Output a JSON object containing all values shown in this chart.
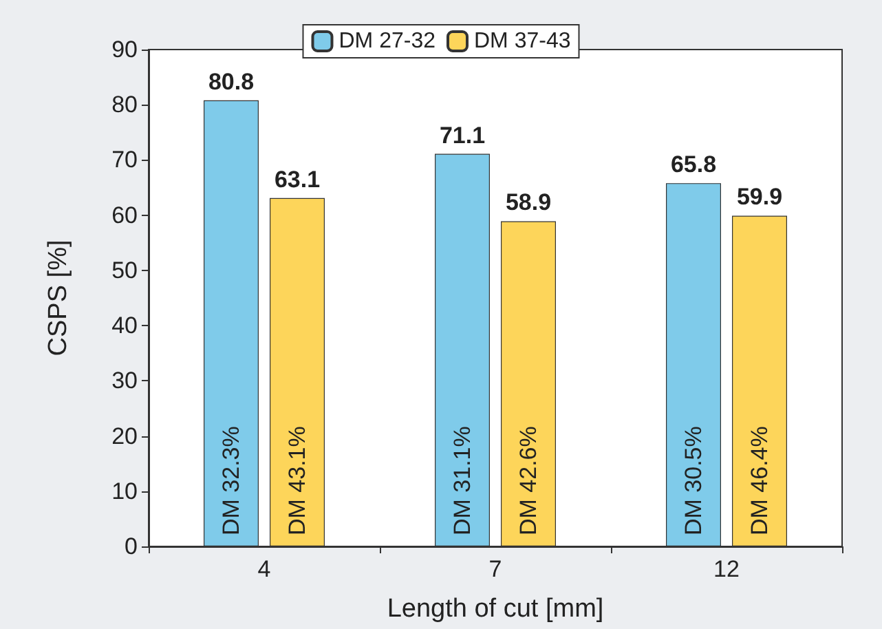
{
  "chart_data": {
    "type": "bar",
    "xlabel": "Length of cut [mm]",
    "ylabel": "CSPS [%]",
    "categories": [
      "4",
      "7",
      "12"
    ],
    "series": [
      {
        "name": "DM 27-32",
        "color": "#7fcbea",
        "values": [
          80.8,
          71.1,
          65.8
        ]
      },
      {
        "name": "DM 37-43",
        "color": "#fdd55a",
        "values": [
          63.1,
          58.9,
          59.9
        ]
      }
    ],
    "ylim": [
      0,
      90
    ],
    "yticks": [
      0,
      10,
      20,
      30,
      40,
      50,
      60,
      70,
      80,
      90
    ],
    "data_labels": true,
    "legend": "top",
    "grid": false,
    "annotations": [
      "DM 32.3%",
      "DM 43.1%",
      "DM 31.1%",
      "DM 42.6%",
      "DM 30.5%",
      "DM 46.4%"
    ]
  }
}
